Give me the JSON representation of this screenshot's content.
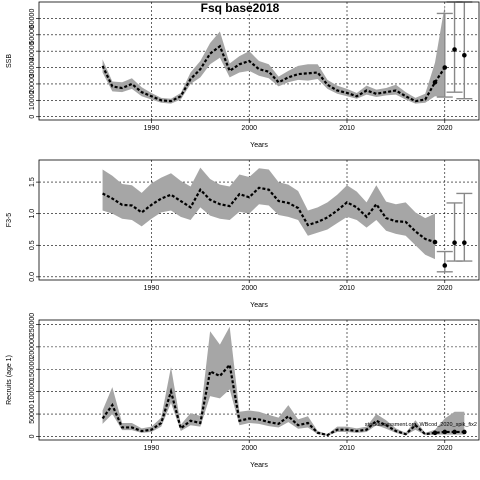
{
  "chart_data": [
    {
      "type": "line",
      "title": "Fsq base2018",
      "xlabel": "Years",
      "ylabel": "SSB",
      "xlim": [
        1978.5,
        2023.5
      ],
      "ylim": [
        -2000,
        70000
      ],
      "xticks": [
        1990,
        2000,
        2010,
        2020
      ],
      "yticks": [
        0,
        10000,
        20000,
        30000,
        40000,
        50000,
        60000
      ],
      "grid": true,
      "x": [
        1985,
        1986,
        1987,
        1988,
        1989,
        1990,
        1991,
        1992,
        1993,
        1994,
        1995,
        1996,
        1997,
        1998,
        1999,
        2000,
        2001,
        2002,
        2003,
        2004,
        2005,
        2006,
        2007,
        2008,
        2009,
        2010,
        2011,
        2012,
        2013,
        2014,
        2015,
        2016,
        2017,
        2018,
        2019,
        2020
      ],
      "estimate": [
        31000,
        18500,
        17500,
        20000,
        15000,
        12500,
        10000,
        9500,
        12500,
        23000,
        29000,
        38500,
        43000,
        28000,
        32000,
        34000,
        29000,
        27500,
        21000,
        24000,
        26000,
        26500,
        27000,
        19500,
        16000,
        14500,
        12500,
        16000,
        14000,
        15000,
        16000,
        12500,
        9500,
        10500,
        21000,
        30000
      ],
      "lower": [
        27000,
        15500,
        15000,
        17000,
        12500,
        10500,
        8500,
        8000,
        10500,
        20000,
        24000,
        32000,
        36000,
        24000,
        27000,
        28000,
        25000,
        23500,
        18500,
        21000,
        22500,
        22000,
        23000,
        17000,
        14000,
        12500,
        11000,
        13500,
        12000,
        13000,
        13500,
        10500,
        8000,
        8500,
        12500,
        12000
      ],
      "upper": [
        35000,
        21500,
        21000,
        23500,
        18000,
        14500,
        11500,
        11000,
        14500,
        27000,
        34000,
        45000,
        52000,
        32500,
        37000,
        40000,
        34000,
        32000,
        24500,
        28000,
        31000,
        32000,
        32000,
        22500,
        19000,
        17000,
        14500,
        19000,
        16500,
        17500,
        19500,
        15000,
        11500,
        14000,
        33000,
        68000
      ],
      "points": {
        "x": [
          2019,
          2020,
          2021,
          2022
        ],
        "y": [
          21000,
          30000,
          41000,
          37500
        ]
      },
      "ci_bars": [
        {
          "x": 2020,
          "low": 12000,
          "high": 63000
        },
        {
          "x": 2021,
          "low": 15000,
          "high": 70000
        },
        {
          "x": 2022,
          "low": 11000,
          "high": 70000
        }
      ]
    },
    {
      "type": "line",
      "title": "",
      "xlabel": "Years",
      "ylabel": "F3-5",
      "xlim": [
        1978.5,
        2023.5
      ],
      "ylim": [
        -0.05,
        1.85
      ],
      "xticks": [
        1990,
        2000,
        2010,
        2020
      ],
      "yticks": [
        0.0,
        0.5,
        1.0,
        1.5
      ],
      "grid": true,
      "x": [
        1985,
        1986,
        1987,
        1988,
        1989,
        1990,
        1991,
        1992,
        1993,
        1994,
        1995,
        1996,
        1997,
        1998,
        1999,
        2000,
        2001,
        2002,
        2003,
        2004,
        2005,
        2006,
        2007,
        2008,
        2009,
        2010,
        2011,
        2012,
        2013,
        2014,
        2015,
        2016,
        2017,
        2018,
        2019
      ],
      "estimate": [
        1.32,
        1.24,
        1.14,
        1.13,
        1.02,
        1.14,
        1.24,
        1.3,
        1.2,
        1.1,
        1.38,
        1.22,
        1.15,
        1.12,
        1.31,
        1.26,
        1.41,
        1.38,
        1.2,
        1.17,
        1.09,
        0.82,
        0.87,
        0.94,
        1.05,
        1.18,
        1.1,
        0.95,
        1.15,
        0.93,
        0.88,
        0.87,
        0.72,
        0.6,
        0.55
      ],
      "lower": [
        1.05,
        1.0,
        0.92,
        0.9,
        0.8,
        0.92,
        1.02,
        1.05,
        0.95,
        0.9,
        1.1,
        0.97,
        0.92,
        0.9,
        1.03,
        1.0,
        1.15,
        1.13,
        0.98,
        0.95,
        0.9,
        0.65,
        0.7,
        0.75,
        0.85,
        0.95,
        0.9,
        0.78,
        0.9,
        0.73,
        0.68,
        0.65,
        0.5,
        0.35,
        0.28
      ],
      "upper": [
        1.7,
        1.6,
        1.47,
        1.45,
        1.33,
        1.48,
        1.57,
        1.64,
        1.52,
        1.43,
        1.73,
        1.55,
        1.46,
        1.43,
        1.62,
        1.58,
        1.72,
        1.7,
        1.5,
        1.46,
        1.36,
        1.05,
        1.1,
        1.18,
        1.3,
        1.45,
        1.35,
        1.18,
        1.45,
        1.19,
        1.15,
        1.18,
        1.02,
        0.93,
        1.0
      ],
      "points": {
        "x": [
          2019,
          2020,
          2021,
          2022
        ],
        "y": [
          0.55,
          0.18,
          0.54,
          0.54
        ]
      },
      "ci_bars": [
        {
          "x": 2020,
          "low": 0.08,
          "high": 0.4
        },
        {
          "x": 2021,
          "low": 0.25,
          "high": 1.17
        },
        {
          "x": 2022,
          "low": 0.25,
          "high": 1.32
        }
      ]
    },
    {
      "type": "line",
      "title": "",
      "xlabel": "Years",
      "ylabel": "Recruits (age 1)",
      "xlim": [
        1978.5,
        2023.5
      ],
      "ylim": [
        -8000,
        260000
      ],
      "xticks": [
        1990,
        2000,
        2010,
        2020
      ],
      "yticks": [
        0,
        50000,
        100000,
        150000,
        200000,
        250000
      ],
      "grid": true,
      "x": [
        1985,
        1986,
        1987,
        1988,
        1989,
        1990,
        1991,
        1992,
        1993,
        1994,
        1995,
        1996,
        1997,
        1998,
        1999,
        2000,
        2001,
        2002,
        2003,
        2004,
        2005,
        2006,
        2007,
        2008,
        2009,
        2010,
        2011,
        2012,
        2013,
        2014,
        2015,
        2016,
        2017,
        2018,
        2019,
        2020,
        2021,
        2022
      ],
      "estimate": [
        40000,
        70000,
        20000,
        20000,
        12000,
        15000,
        30000,
        100000,
        18000,
        35000,
        30000,
        145000,
        135000,
        160000,
        35000,
        40000,
        38000,
        32000,
        28000,
        45000,
        25000,
        30000,
        8000,
        3000,
        15000,
        15000,
        12000,
        15000,
        35000,
        25000,
        12000,
        5000,
        25000,
        5000,
        8000,
        10000,
        10000,
        10000
      ],
      "lower": [
        28000,
        50000,
        14000,
        14000,
        8000,
        10000,
        22000,
        75000,
        12000,
        25000,
        22000,
        90000,
        85000,
        105000,
        25000,
        30000,
        28000,
        23000,
        20000,
        32000,
        17000,
        20000,
        5000,
        1500,
        10000,
        10000,
        8000,
        10000,
        25000,
        17000,
        8000,
        3000,
        15000,
        3000,
        4000,
        4000,
        4000,
        4000
      ],
      "upper": [
        58000,
        110000,
        30000,
        30000,
        18000,
        22000,
        42000,
        155000,
        26000,
        52000,
        46000,
        235000,
        205000,
        245000,
        55000,
        58000,
        55000,
        48000,
        42000,
        70000,
        38000,
        45000,
        12000,
        5000,
        22000,
        22000,
        18000,
        22000,
        50000,
        36000,
        18000,
        8000,
        36000,
        8000,
        15000,
        40000,
        55000,
        55000
      ],
      "points": {
        "x": [
          2019,
          2020,
          2021,
          2022
        ],
        "y": [
          8000,
          10000,
          10000,
          10000
        ]
      },
      "ci_bars": [],
      "annotation": "stockassessment.org, WBcod_2020_spik_fix2"
    }
  ]
}
